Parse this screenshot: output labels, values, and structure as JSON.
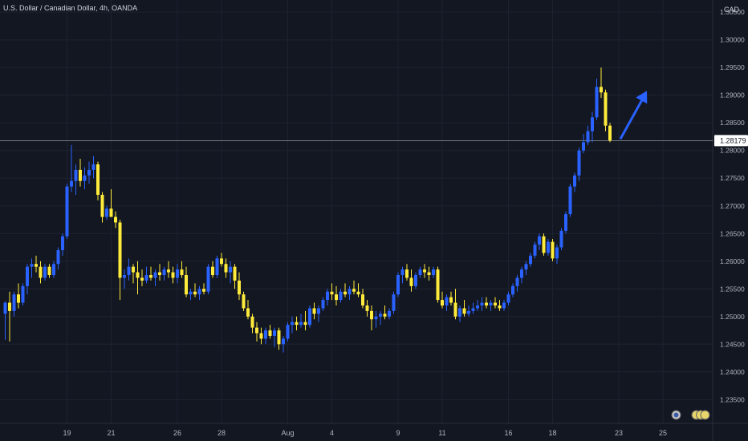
{
  "header": {
    "title": "U.S. Dollar / Canadian Dollar, 4h, OANDA",
    "currency": "CAD"
  },
  "colors": {
    "background": "#131722",
    "up": "#2962ff",
    "down": "#ffeb3b",
    "grid": "#1e2230",
    "text": "#b2b5be",
    "price_line": "#9598a1",
    "arrow": "#2962ff"
  },
  "current_price": {
    "label": "1.28179",
    "value": 1.28179
  },
  "chart_data": {
    "type": "candlestick",
    "symbol": "U.S. Dollar / Canadian Dollar",
    "timeframe": "4h",
    "source": "OANDA",
    "ylim": [
      1.2307,
      1.3072
    ],
    "y_ticks": [
      1.235,
      1.24,
      1.245,
      1.25,
      1.255,
      1.26,
      1.265,
      1.27,
      1.275,
      1.28,
      1.285,
      1.29,
      1.295,
      1.3,
      1.305
    ],
    "y_tick_labels": [
      "1.23500",
      "1.24000",
      "1.24500",
      "1.25000",
      "1.25500",
      "1.26000",
      "1.26500",
      "1.27000",
      "1.27500",
      "1.28000",
      "1.28500",
      "1.29000",
      "1.29500",
      "1.30000",
      "1.30500"
    ],
    "x_labels": [
      {
        "label": "19",
        "index": 14
      },
      {
        "label": "21",
        "index": 24
      },
      {
        "label": "26",
        "index": 39
      },
      {
        "label": "28",
        "index": 49
      },
      {
        "label": "Aug",
        "index": 64
      },
      {
        "label": "4",
        "index": 74
      },
      {
        "label": "9",
        "index": 89
      },
      {
        "label": "11",
        "index": 99
      },
      {
        "label": "16",
        "index": 114
      },
      {
        "label": "18",
        "index": 124
      },
      {
        "label": "23",
        "index": 139
      },
      {
        "label": "25",
        "index": 149
      }
    ],
    "candles": [
      [
        1.2505,
        1.2528,
        1.2458,
        1.2525
      ],
      [
        1.2525,
        1.2545,
        1.2455,
        1.251
      ],
      [
        1.251,
        1.2545,
        1.25,
        1.254
      ],
      [
        1.254,
        1.256,
        1.2515,
        1.2525
      ],
      [
        1.2525,
        1.256,
        1.252,
        1.2555
      ],
      [
        1.2555,
        1.2595,
        1.254,
        1.259
      ],
      [
        1.259,
        1.2605,
        1.257,
        1.2595
      ],
      [
        1.2595,
        1.261,
        1.258,
        1.259
      ],
      [
        1.259,
        1.26,
        1.256,
        1.257
      ],
      [
        1.257,
        1.2595,
        1.2565,
        1.259
      ],
      [
        1.259,
        1.2595,
        1.257,
        1.2575
      ],
      [
        1.2575,
        1.26,
        1.257,
        1.2595
      ],
      [
        1.2595,
        1.2625,
        1.2585,
        1.262
      ],
      [
        1.262,
        1.265,
        1.261,
        1.2645
      ],
      [
        1.2645,
        1.274,
        1.264,
        1.2735
      ],
      [
        1.2735,
        1.281,
        1.2725,
        1.2745
      ],
      [
        1.2745,
        1.2775,
        1.272,
        1.2765
      ],
      [
        1.2765,
        1.2785,
        1.2735,
        1.2745
      ],
      [
        1.2745,
        1.277,
        1.273,
        1.2755
      ],
      [
        1.2755,
        1.278,
        1.274,
        1.2765
      ],
      [
        1.2765,
        1.279,
        1.275,
        1.2775
      ],
      [
        1.2775,
        1.278,
        1.271,
        1.272
      ],
      [
        1.272,
        1.2725,
        1.267,
        1.268
      ],
      [
        1.268,
        1.27,
        1.2675,
        1.2695
      ],
      [
        1.2695,
        1.273,
        1.268,
        1.268
      ],
      [
        1.268,
        1.269,
        1.266,
        1.267
      ],
      [
        1.267,
        1.2675,
        1.253,
        1.257
      ],
      [
        1.257,
        1.2585,
        1.255,
        1.2575
      ],
      [
        1.2575,
        1.2605,
        1.2565,
        1.259
      ],
      [
        1.259,
        1.2595,
        1.256,
        1.258
      ],
      [
        1.258,
        1.26,
        1.254,
        1.257
      ],
      [
        1.257,
        1.2585,
        1.2555,
        1.2565
      ],
      [
        1.2565,
        1.259,
        1.256,
        1.2575
      ],
      [
        1.2575,
        1.259,
        1.2565,
        1.257
      ],
      [
        1.257,
        1.2585,
        1.2555,
        1.258
      ],
      [
        1.258,
        1.2595,
        1.2565,
        1.2575
      ],
      [
        1.2575,
        1.259,
        1.2565,
        1.2585
      ],
      [
        1.2585,
        1.26,
        1.257,
        1.258
      ],
      [
        1.258,
        1.259,
        1.256,
        1.257
      ],
      [
        1.257,
        1.2595,
        1.256,
        1.2585
      ],
      [
        1.2585,
        1.26,
        1.257,
        1.2575
      ],
      [
        1.2575,
        1.259,
        1.2535,
        1.254
      ],
      [
        1.254,
        1.255,
        1.253,
        1.2545
      ],
      [
        1.2545,
        1.256,
        1.2535,
        1.254
      ],
      [
        1.254,
        1.2555,
        1.253,
        1.255
      ],
      [
        1.255,
        1.256,
        1.254,
        1.2545
      ],
      [
        1.2545,
        1.2595,
        1.254,
        1.259
      ],
      [
        1.259,
        1.26,
        1.257,
        1.2575
      ],
      [
        1.2575,
        1.261,
        1.257,
        1.2605
      ],
      [
        1.2605,
        1.2615,
        1.259,
        1.2595
      ],
      [
        1.2595,
        1.2605,
        1.257,
        1.258
      ],
      [
        1.258,
        1.26,
        1.256,
        1.259
      ],
      [
        1.259,
        1.2595,
        1.255,
        1.2565
      ],
      [
        1.2565,
        1.258,
        1.253,
        1.254
      ],
      [
        1.254,
        1.2545,
        1.251,
        1.2515
      ],
      [
        1.2515,
        1.253,
        1.2495,
        1.25
      ],
      [
        1.25,
        1.2505,
        1.247,
        1.248
      ],
      [
        1.248,
        1.249,
        1.2455,
        1.247
      ],
      [
        1.247,
        1.248,
        1.245,
        1.246
      ],
      [
        1.246,
        1.248,
        1.245,
        1.2475
      ],
      [
        1.2475,
        1.2485,
        1.246,
        1.2465
      ],
      [
        1.2465,
        1.248,
        1.2445,
        1.2475
      ],
      [
        1.2475,
        1.248,
        1.244,
        1.245
      ],
      [
        1.245,
        1.2465,
        1.2435,
        1.246
      ],
      [
        1.246,
        1.249,
        1.2455,
        1.2485
      ],
      [
        1.2485,
        1.25,
        1.247,
        1.249
      ],
      [
        1.249,
        1.25,
        1.2475,
        1.2485
      ],
      [
        1.2485,
        1.2505,
        1.248,
        1.249
      ],
      [
        1.249,
        1.251,
        1.2475,
        1.2485
      ],
      [
        1.2485,
        1.252,
        1.248,
        1.2515
      ],
      [
        1.2515,
        1.2525,
        1.2495,
        1.2505
      ],
      [
        1.2505,
        1.252,
        1.249,
        1.2515
      ],
      [
        1.2515,
        1.2535,
        1.251,
        1.253
      ],
      [
        1.253,
        1.255,
        1.252,
        1.2545
      ],
      [
        1.2545,
        1.256,
        1.253,
        1.254
      ],
      [
        1.254,
        1.2555,
        1.252,
        1.253
      ],
      [
        1.253,
        1.255,
        1.2525,
        1.2545
      ],
      [
        1.2545,
        1.256,
        1.2535,
        1.254
      ],
      [
        1.254,
        1.2555,
        1.253,
        1.255
      ],
      [
        1.255,
        1.2565,
        1.254,
        1.2545
      ],
      [
        1.2545,
        1.256,
        1.2535,
        1.254
      ],
      [
        1.254,
        1.255,
        1.2515,
        1.252
      ],
      [
        1.252,
        1.253,
        1.25,
        1.251
      ],
      [
        1.251,
        1.252,
        1.2475,
        1.2495
      ],
      [
        1.2495,
        1.251,
        1.248,
        1.25
      ],
      [
        1.25,
        1.251,
        1.2485,
        1.2505
      ],
      [
        1.2505,
        1.252,
        1.2495,
        1.25
      ],
      [
        1.25,
        1.2515,
        1.2495,
        1.251
      ],
      [
        1.251,
        1.2545,
        1.2505,
        1.254
      ],
      [
        1.254,
        1.258,
        1.2535,
        1.2575
      ],
      [
        1.2575,
        1.259,
        1.256,
        1.2585
      ],
      [
        1.2585,
        1.2595,
        1.2565,
        1.257
      ],
      [
        1.257,
        1.2585,
        1.2545,
        1.2555
      ],
      [
        1.2555,
        1.258,
        1.255,
        1.2575
      ],
      [
        1.2575,
        1.259,
        1.257,
        1.2585
      ],
      [
        1.2585,
        1.2595,
        1.257,
        1.258
      ],
      [
        1.258,
        1.259,
        1.2565,
        1.2575
      ],
      [
        1.2575,
        1.259,
        1.257,
        1.2585
      ],
      [
        1.2585,
        1.259,
        1.2525,
        1.253
      ],
      [
        1.253,
        1.2545,
        1.2515,
        1.252
      ],
      [
        1.252,
        1.254,
        1.251,
        1.2535
      ],
      [
        1.2535,
        1.2545,
        1.252,
        1.2525
      ],
      [
        1.2525,
        1.255,
        1.2495,
        1.25
      ],
      [
        1.25,
        1.252,
        1.249,
        1.2515
      ],
      [
        1.2515,
        1.253,
        1.25,
        1.2505
      ],
      [
        1.2505,
        1.252,
        1.25,
        1.251
      ],
      [
        1.251,
        1.2525,
        1.2505,
        1.2515
      ],
      [
        1.2515,
        1.253,
        1.251,
        1.252
      ],
      [
        1.252,
        1.2535,
        1.251,
        1.2525
      ],
      [
        1.2525,
        1.2535,
        1.2515,
        1.252
      ],
      [
        1.252,
        1.253,
        1.251,
        1.2525
      ],
      [
        1.2525,
        1.2535,
        1.2515,
        1.252
      ],
      [
        1.252,
        1.253,
        1.251,
        1.2515
      ],
      [
        1.2515,
        1.253,
        1.251,
        1.2525
      ],
      [
        1.2525,
        1.2545,
        1.252,
        1.254
      ],
      [
        1.254,
        1.256,
        1.2535,
        1.2555
      ],
      [
        1.2555,
        1.2575,
        1.2545,
        1.257
      ],
      [
        1.257,
        1.259,
        1.256,
        1.2585
      ],
      [
        1.2585,
        1.26,
        1.2575,
        1.2595
      ],
      [
        1.2595,
        1.2615,
        1.259,
        1.261
      ],
      [
        1.261,
        1.2635,
        1.2605,
        1.263
      ],
      [
        1.263,
        1.265,
        1.262,
        1.2645
      ],
      [
        1.2645,
        1.265,
        1.261,
        1.2615
      ],
      [
        1.2615,
        1.264,
        1.261,
        1.2635
      ],
      [
        1.2635,
        1.264,
        1.26,
        1.2605
      ],
      [
        1.2605,
        1.263,
        1.2595,
        1.2625
      ],
      [
        1.2625,
        1.266,
        1.262,
        1.2655
      ],
      [
        1.2655,
        1.269,
        1.265,
        1.2685
      ],
      [
        1.2685,
        1.274,
        1.268,
        1.2735
      ],
      [
        1.2735,
        1.276,
        1.2725,
        1.2755
      ],
      [
        1.2755,
        1.2805,
        1.2745,
        1.28
      ],
      [
        1.28,
        1.283,
        1.2795,
        1.2815
      ],
      [
        1.2815,
        1.2845,
        1.281,
        1.2835
      ],
      [
        1.2835,
        1.287,
        1.2815,
        1.286
      ],
      [
        1.286,
        1.293,
        1.2855,
        1.2915
      ],
      [
        1.2915,
        1.295,
        1.2895,
        1.2905
      ],
      [
        1.2905,
        1.291,
        1.2835,
        1.2845
      ],
      [
        1.2845,
        1.285,
        1.2815,
        1.2818
      ]
    ],
    "annotation": {
      "type": "arrow",
      "direction": "up",
      "from": {
        "index": 139,
        "price": 1.2818
      },
      "to": {
        "index": 145,
        "price": 1.2908
      }
    }
  }
}
